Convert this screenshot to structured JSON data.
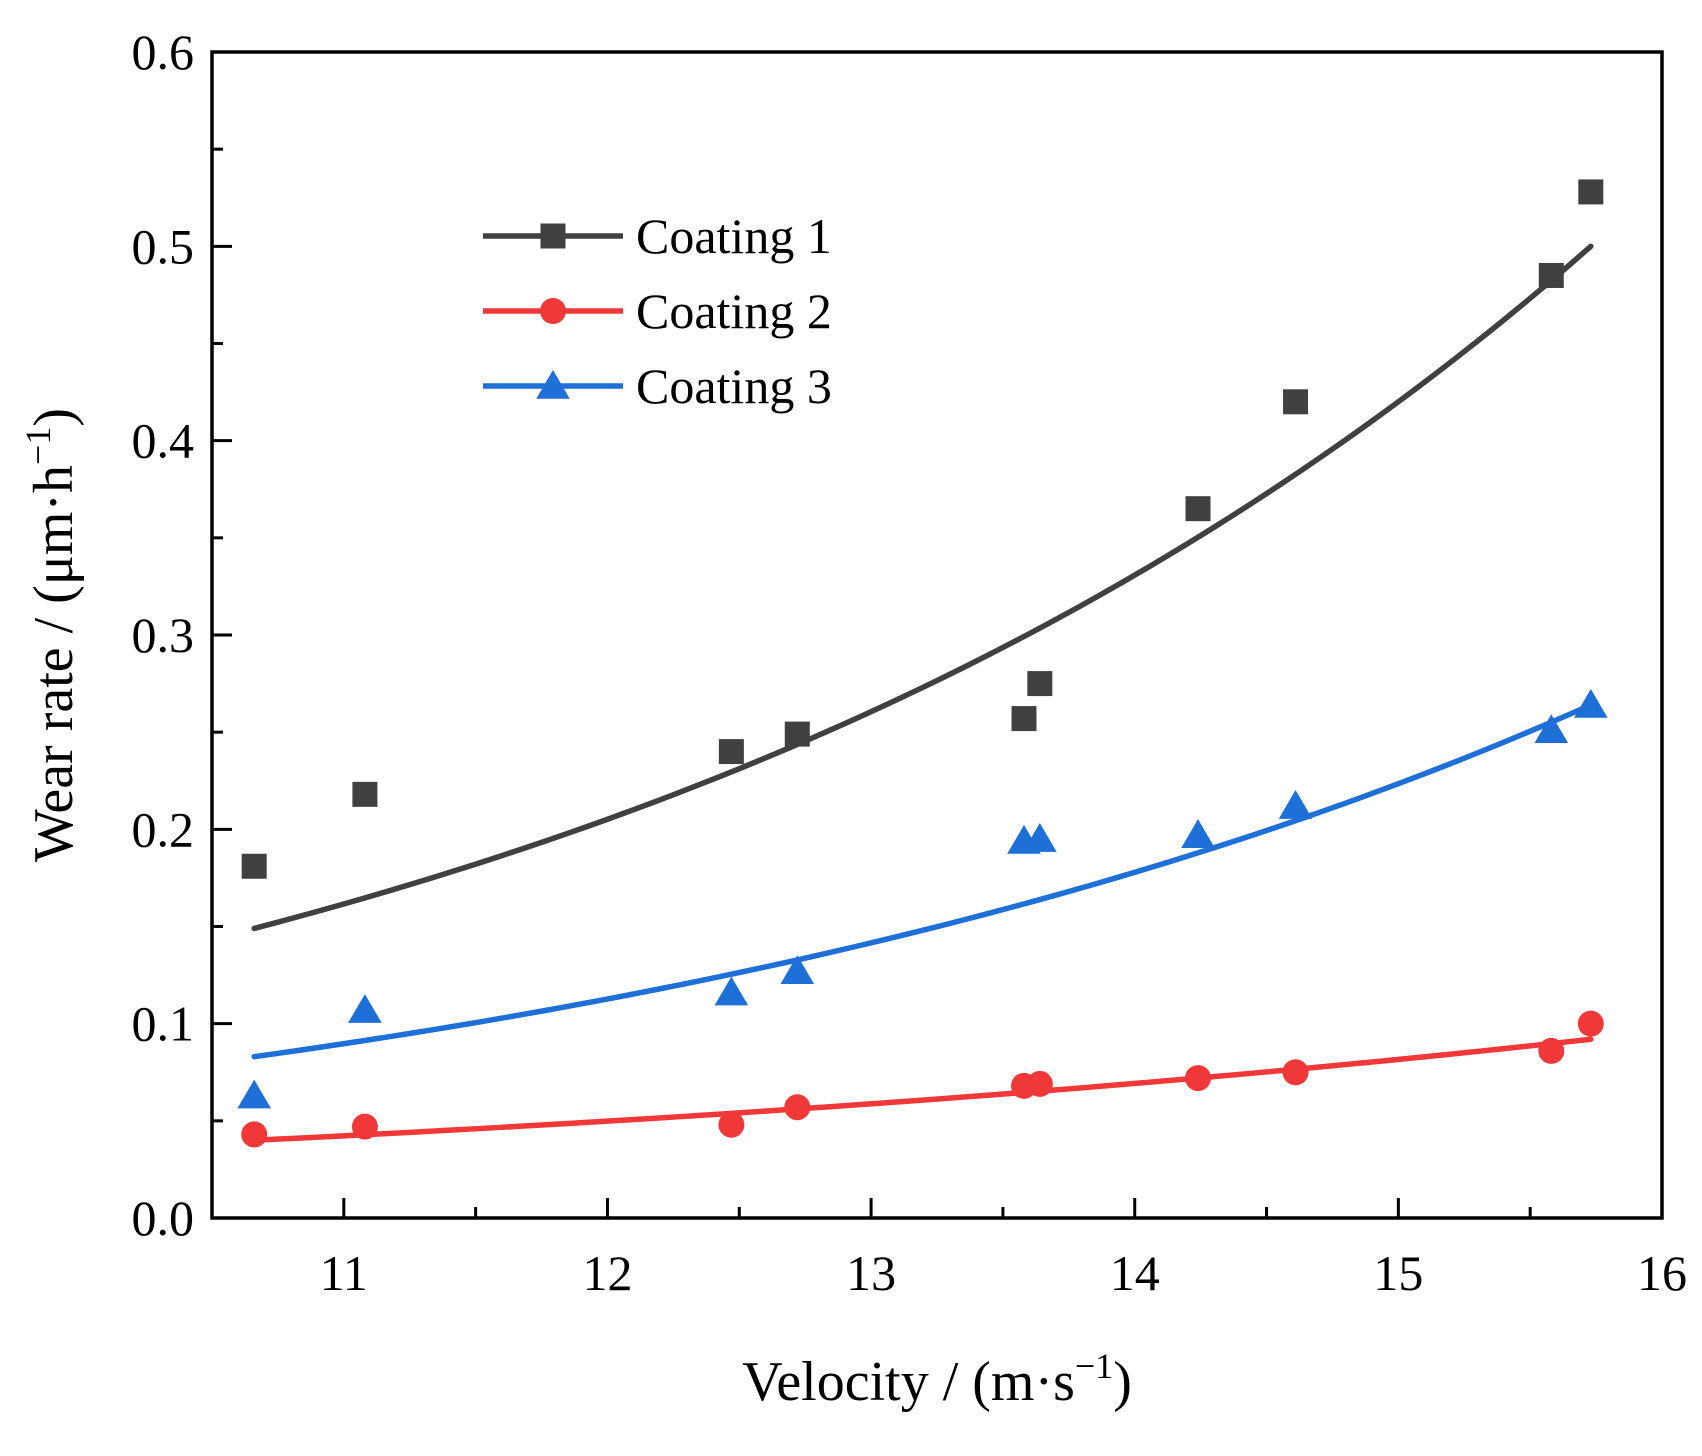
{
  "chart_data": {
    "type": "scatter",
    "title": "",
    "xlabel": "Velocity / (m·s",
    "xlabel_sup": "−1",
    "xlabel_close": ")",
    "ylabel": "Wear rate / (μm·h",
    "ylabel_sup": "−1",
    "ylabel_close": ")",
    "xlim": [
      10.5,
      16
    ],
    "ylim": [
      0.0,
      0.6
    ],
    "xticks": [
      {
        "value": 11,
        "label": "11"
      },
      {
        "value": 12,
        "label": "12"
      },
      {
        "value": 13,
        "label": "13"
      },
      {
        "value": 14,
        "label": "14"
      },
      {
        "value": 15,
        "label": "15"
      },
      {
        "value": 16,
        "label": "16"
      }
    ],
    "yticks": [
      {
        "value": 0.0,
        "label": "0.0"
      },
      {
        "value": 0.1,
        "label": "0.1"
      },
      {
        "value": 0.2,
        "label": "0.2"
      },
      {
        "value": 0.3,
        "label": "0.3"
      },
      {
        "value": 0.4,
        "label": "0.4"
      },
      {
        "value": 0.5,
        "label": "0.5"
      },
      {
        "value": 0.6,
        "label": "0.6"
      }
    ],
    "grid": false,
    "legend_position": "top-left",
    "series": [
      {
        "name": "Coating 1",
        "color": "#404040",
        "marker": "square",
        "x": [
          10.66,
          11.08,
          12.47,
          12.72,
          13.58,
          13.64,
          14.24,
          14.61,
          15.58,
          15.73
        ],
        "y": [
          0.181,
          0.218,
          0.24,
          0.249,
          0.257,
          0.275,
          0.365,
          0.42,
          0.485,
          0.528
        ],
        "fit": {
          "x": [
            10.66,
            15.73
          ],
          "y": [
            0.149,
            0.5
          ]
        }
      },
      {
        "name": "Coating 2",
        "color": "#f03838",
        "marker": "circle",
        "x": [
          10.66,
          11.08,
          12.47,
          12.72,
          13.58,
          13.64,
          14.24,
          14.61,
          15.58,
          15.73
        ],
        "y": [
          0.043,
          0.047,
          0.048,
          0.057,
          0.068,
          0.069,
          0.072,
          0.075,
          0.086,
          0.1
        ],
        "fit": {
          "x": [
            10.66,
            15.73
          ],
          "y": [
            0.04,
            0.092
          ]
        }
      },
      {
        "name": "Coating 3",
        "color": "#1f6fd8",
        "marker": "triangle",
        "x": [
          10.66,
          11.08,
          12.47,
          12.72,
          13.58,
          13.64,
          14.24,
          14.61,
          15.58,
          15.73
        ],
        "y": [
          0.063,
          0.107,
          0.116,
          0.127,
          0.194,
          0.195,
          0.197,
          0.212,
          0.251,
          0.264
        ],
        "fit": {
          "x": [
            10.66,
            15.73
          ],
          "y": [
            0.083,
            0.264
          ]
        }
      }
    ]
  }
}
